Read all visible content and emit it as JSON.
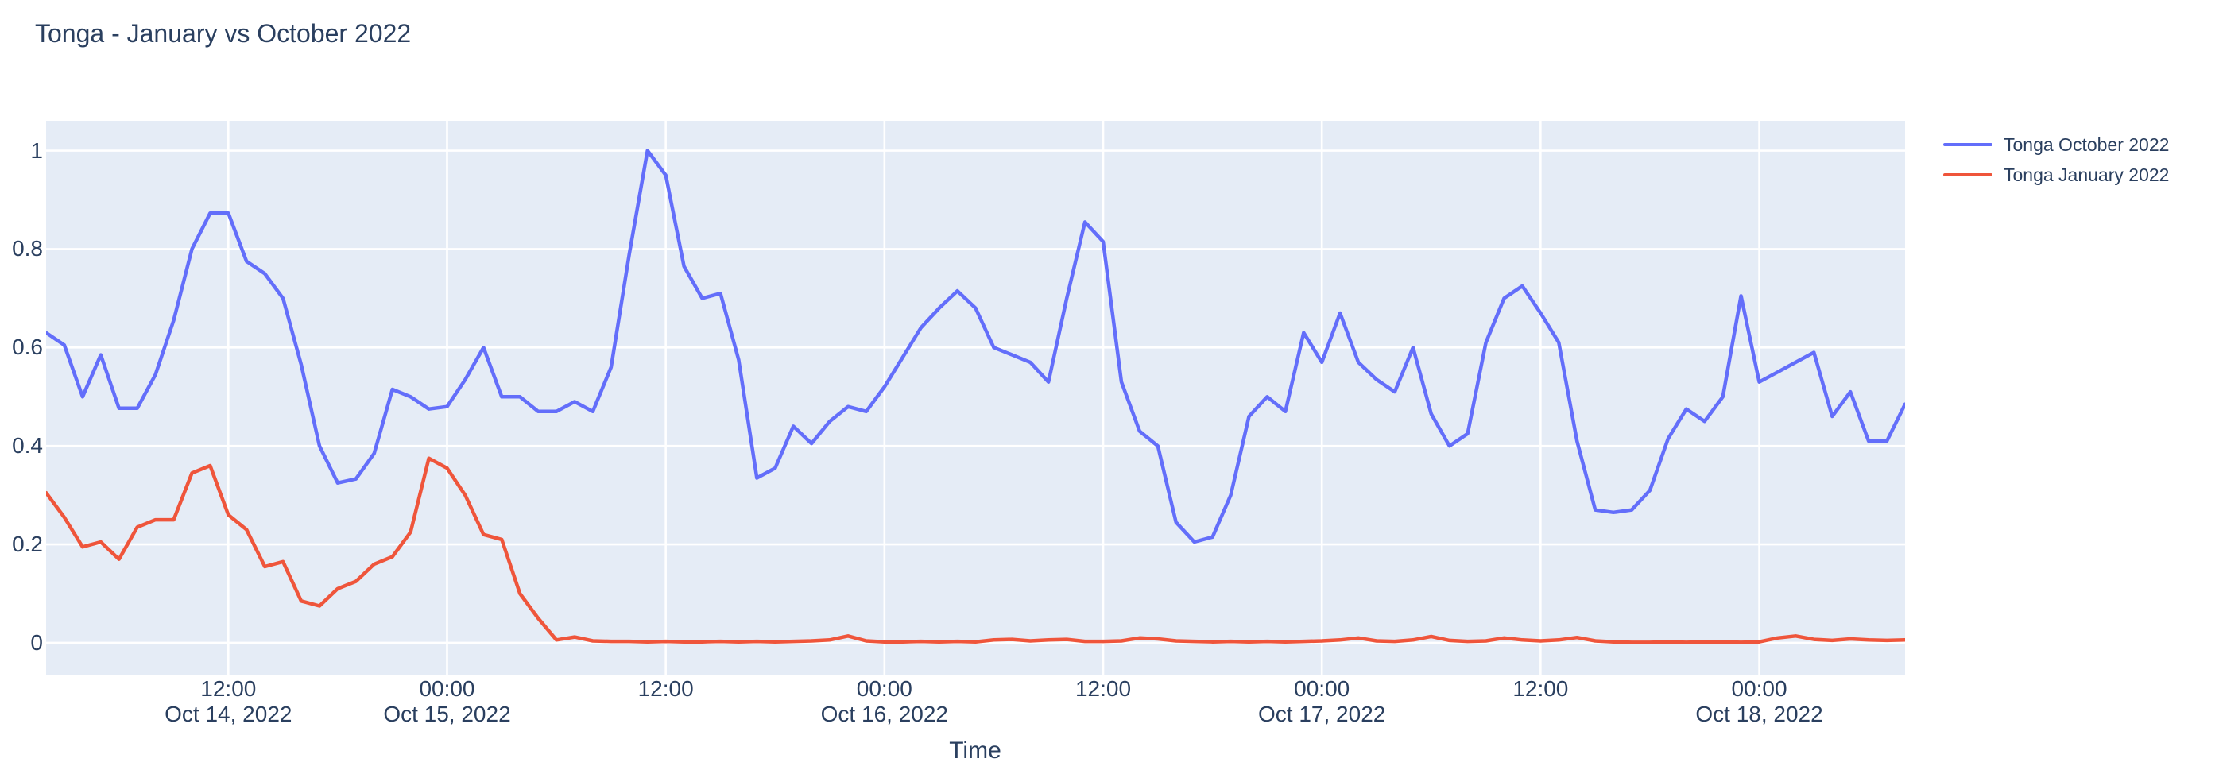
{
  "title": "Tonga - January vs October 2022",
  "chart_data": {
    "type": "line",
    "title": "Tonga - January vs October 2022",
    "xlabel": "Time",
    "ylabel": "",
    "x_start": "2022-10-14 02:00",
    "x_step_hours": 1,
    "n_points": 103,
    "ylim": [
      -0.0646,
      1.0606
    ],
    "y_ticks": [
      0,
      0.2,
      0.4,
      0.6,
      0.8,
      1
    ],
    "grid": true,
    "plot_bg_color": "#e5ecf6",
    "grid_color": "#ffffff",
    "text_color": "#2a3f5f",
    "legend_position": "top-right-outside",
    "x_ticks": [
      {
        "hour_offset": 10,
        "label": "12:00",
        "sub": "Oct 14, 2022"
      },
      {
        "hour_offset": 22,
        "label": "00:00",
        "sub": "Oct 15, 2022"
      },
      {
        "hour_offset": 34,
        "label": "12:00",
        "sub": ""
      },
      {
        "hour_offset": 46,
        "label": "00:00",
        "sub": "Oct 16, 2022"
      },
      {
        "hour_offset": 58,
        "label": "12:00",
        "sub": ""
      },
      {
        "hour_offset": 70,
        "label": "00:00",
        "sub": "Oct 17, 2022"
      },
      {
        "hour_offset": 82,
        "label": "12:00",
        "sub": ""
      },
      {
        "hour_offset": 94,
        "label": "00:00",
        "sub": "Oct 18, 2022"
      }
    ],
    "series": [
      {
        "name": "Tonga October 2022",
        "color": "#636efa",
        "values": [
          0.63,
          0.605,
          0.5,
          0.585,
          0.4765,
          0.4765,
          0.545,
          0.655,
          0.8,
          0.873,
          0.873,
          0.775,
          0.75,
          0.7,
          0.565,
          0.4,
          0.325,
          0.333,
          0.385,
          0.515,
          0.5,
          0.475,
          0.48,
          0.535,
          0.6,
          0.5,
          0.5,
          0.47,
          0.47,
          0.49,
          0.47,
          0.56,
          0.79,
          1.0,
          0.95,
          0.765,
          0.7,
          0.71,
          0.575,
          0.335,
          0.355,
          0.44,
          0.405,
          0.45,
          0.48,
          0.47,
          0.52,
          0.58,
          0.64,
          0.68,
          0.715,
          0.68,
          0.6,
          0.585,
          0.57,
          0.53,
          0.7,
          0.855,
          0.815,
          0.53,
          0.43,
          0.4,
          0.245,
          0.205,
          0.215,
          0.3,
          0.46,
          0.5,
          0.47,
          0.63,
          0.57,
          0.67,
          0.57,
          0.535,
          0.51,
          0.6,
          0.465,
          0.4,
          0.425,
          0.61,
          0.7,
          0.725,
          0.67,
          0.61,
          0.41,
          0.27,
          0.265,
          0.27,
          0.31,
          0.415,
          0.475,
          0.45,
          0.5,
          0.705,
          0.53,
          0.55,
          0.57,
          0.59,
          0.46,
          0.51,
          0.41,
          0.41,
          0.485
        ]
      },
      {
        "name": "Tonga January 2022",
        "color": "#ef553b",
        "values": [
          0.305,
          0.255,
          0.195,
          0.205,
          0.17,
          0.235,
          0.25,
          0.25,
          0.345,
          0.36,
          0.26,
          0.23,
          0.155,
          0.165,
          0.085,
          0.075,
          0.11,
          0.125,
          0.16,
          0.175,
          0.225,
          0.375,
          0.355,
          0.3,
          0.22,
          0.21,
          0.1,
          0.05,
          0.006,
          0.012,
          0.004,
          0.003,
          0.003,
          0.002,
          0.003,
          0.002,
          0.002,
          0.003,
          0.002,
          0.003,
          0.002,
          0.003,
          0.004,
          0.006,
          0.014,
          0.004,
          0.002,
          0.002,
          0.003,
          0.002,
          0.003,
          0.002,
          0.006,
          0.007,
          0.004,
          0.006,
          0.007,
          0.003,
          0.003,
          0.004,
          0.01,
          0.008,
          0.004,
          0.003,
          0.002,
          0.003,
          0.002,
          0.003,
          0.002,
          0.003,
          0.004,
          0.006,
          0.01,
          0.004,
          0.003,
          0.006,
          0.013,
          0.005,
          0.003,
          0.004,
          0.01,
          0.006,
          0.004,
          0.006,
          0.011,
          0.004,
          0.002,
          0.001,
          0.001,
          0.002,
          0.001,
          0.002,
          0.002,
          0.001,
          0.002,
          0.01,
          0.014,
          0.007,
          0.005,
          0.008,
          0.006,
          0.005,
          0.006
        ]
      }
    ]
  }
}
